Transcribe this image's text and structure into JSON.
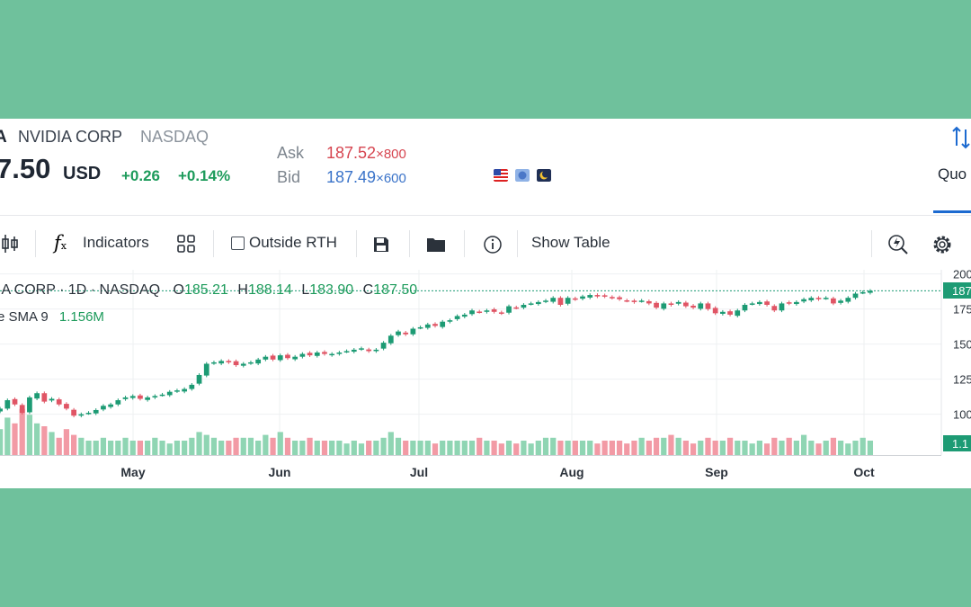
{
  "header": {
    "symbol_fragment": "A",
    "company": "NVIDIA CORP",
    "exchange": "NASDAQ",
    "last_price_fragment": "7.50",
    "currency": "USD",
    "change": "+0.26",
    "change_pct": "+0.14%",
    "ask_label": "Ask",
    "ask_price": "187.52",
    "ask_size": "800",
    "bid_label": "Bid",
    "bid_price": "187.49",
    "bid_size": "600",
    "times_sign": "×",
    "quote_tab": "Quo"
  },
  "toolbar": {
    "indicators": "Indicators",
    "outside_rth": "Outside RTH",
    "show_table": "Show Table"
  },
  "chart_legend": {
    "title": "IA CORP · 1D · NASDAQ",
    "o_label": "O",
    "o_value": "185.21",
    "h_label": "H",
    "h_value": "188.14",
    "l_label": "L",
    "l_value": "183.90",
    "c_label": "C",
    "c_value": "187.50",
    "vol_label": "e SMA 9",
    "vol_value": "1.156M"
  },
  "chart_data": {
    "type": "candlestick",
    "x_labels": [
      "May",
      "Jun",
      "Jul",
      "Aug",
      "Sep",
      "Oct"
    ],
    "y_ticks": [
      "200",
      "175",
      "150",
      "125",
      "100"
    ],
    "y_range": [
      94,
      203
    ],
    "last_price_badge": "187",
    "volume_badge": "1.1",
    "closes": [
      104,
      110,
      107,
      101,
      112,
      115,
      109,
      111,
      107,
      104,
      99,
      100,
      101,
      103,
      106,
      107,
      110,
      112,
      113,
      111,
      112,
      113,
      114,
      116,
      117,
      118,
      121,
      128,
      136,
      137,
      138,
      137,
      135,
      136,
      137,
      139,
      141,
      139,
      142,
      140,
      141,
      143,
      142,
      144,
      143,
      143,
      144,
      145,
      146,
      147,
      145,
      146,
      151,
      156,
      159,
      157,
      161,
      162,
      164,
      163,
      166,
      167,
      170,
      171,
      174,
      173,
      174,
      173,
      172,
      177,
      176,
      178,
      179,
      180,
      181,
      183,
      178,
      183,
      182,
      184,
      185,
      184,
      184,
      183,
      182,
      181,
      180,
      181,
      179,
      176,
      179,
      178,
      180,
      177,
      176,
      179,
      175,
      172,
      173,
      171,
      174,
      178,
      179,
      180,
      178,
      174,
      179,
      179,
      180,
      182,
      183,
      182,
      183,
      179,
      181,
      183,
      186,
      187,
      188
    ],
    "volumes": [
      0.9,
      1.3,
      1.1,
      1.6,
      1.4,
      1.1,
      1.0,
      0.8,
      0.6,
      0.9,
      0.7,
      0.6,
      0.5,
      0.5,
      0.6,
      0.5,
      0.5,
      0.6,
      0.5,
      0.5,
      0.5,
      0.6,
      0.5,
      0.4,
      0.5,
      0.5,
      0.6,
      0.8,
      0.7,
      0.6,
      0.5,
      0.5,
      0.6,
      0.6,
      0.6,
      0.5,
      0.7,
      0.6,
      0.8,
      0.6,
      0.5,
      0.5,
      0.6,
      0.5,
      0.5,
      0.5,
      0.5,
      0.4,
      0.5,
      0.4,
      0.5,
      0.5,
      0.6,
      0.8,
      0.6,
      0.5,
      0.5,
      0.5,
      0.5,
      0.4,
      0.5,
      0.5,
      0.5,
      0.5,
      0.5,
      0.6,
      0.5,
      0.5,
      0.4,
      0.5,
      0.4,
      0.5,
      0.4,
      0.5,
      0.6,
      0.6,
      0.5,
      0.5,
      0.5,
      0.5,
      0.5,
      0.4,
      0.5,
      0.5,
      0.5,
      0.4,
      0.5,
      0.6,
      0.5,
      0.6,
      0.6,
      0.7,
      0.6,
      0.5,
      0.4,
      0.5,
      0.6,
      0.5,
      0.5,
      0.6,
      0.5,
      0.5,
      0.4,
      0.5,
      0.4,
      0.6,
      0.5,
      0.6,
      0.5,
      0.7,
      0.5,
      0.4,
      0.5,
      0.6,
      0.5,
      0.4,
      0.5,
      0.6,
      0.5
    ]
  },
  "colors": {
    "up": "#1d9b74",
    "down": "#e05565",
    "up_vol": "#8fd5b3",
    "down_vol": "#f29aa5",
    "background": "#6fc19c",
    "accent": "#1c6ad0"
  }
}
